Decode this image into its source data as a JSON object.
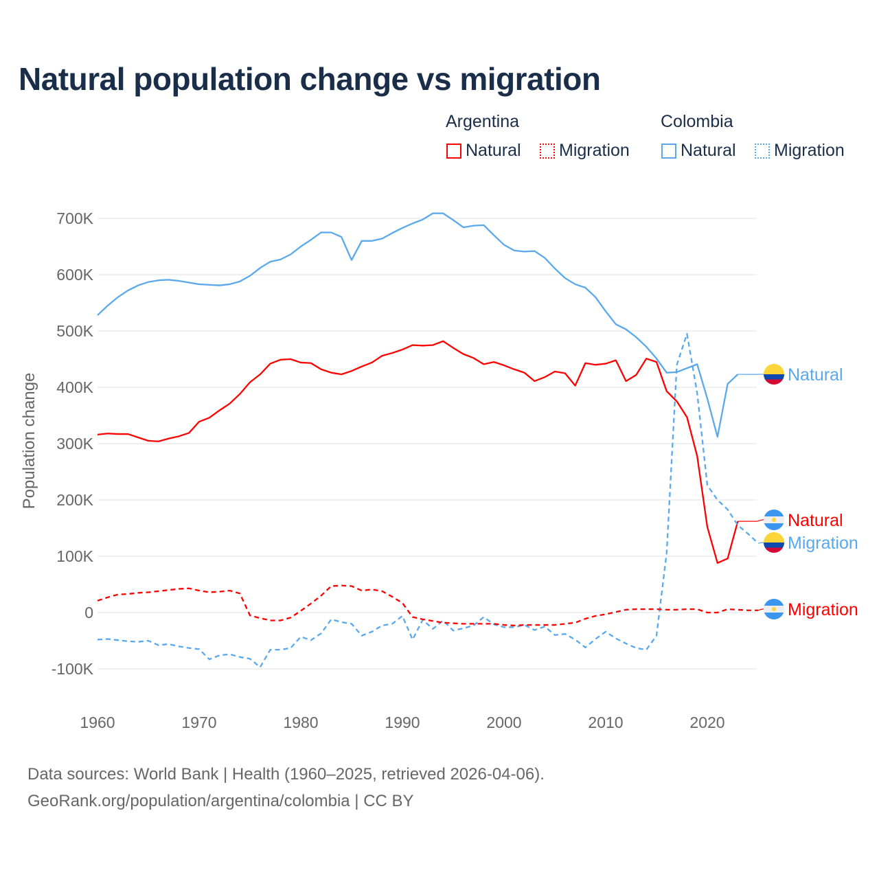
{
  "title": "Natural population change vs migration",
  "legend": {
    "groups": [
      {
        "name": "Argentina",
        "items": [
          {
            "label": "Natural",
            "style": "solid"
          },
          {
            "label": "Migration",
            "style": "dotted"
          }
        ],
        "color": "#ff0000"
      },
      {
        "name": "Colombia",
        "items": [
          {
            "label": "Natural",
            "style": "solid"
          },
          {
            "label": "Migration",
            "style": "dotted"
          }
        ],
        "color": "#5aa8ec"
      }
    ]
  },
  "source": {
    "line1": "Data sources: World Bank | Health (1960–2025, retrieved 2026-04-06).",
    "line2": "GeoRank.org/population/argentina/colombia | CC BY"
  },
  "chart_data": {
    "type": "line",
    "title": "Natural population change vs migration",
    "xlabel": "",
    "ylabel": "Population change",
    "xlim": [
      1960,
      2025
    ],
    "ylim": [
      -100000,
      700000
    ],
    "xticks": [
      1960,
      1970,
      1980,
      1990,
      2000,
      2010,
      2020
    ],
    "yticks": [
      {
        "v": -100000,
        "label": "-100K"
      },
      {
        "v": 0,
        "label": "0"
      },
      {
        "v": 100000,
        "label": "100K"
      },
      {
        "v": 200000,
        "label": "200K"
      },
      {
        "v": 300000,
        "label": "300K"
      },
      {
        "v": 400000,
        "label": "400K"
      },
      {
        "v": 500000,
        "label": "500K"
      },
      {
        "v": 600000,
        "label": "600K"
      },
      {
        "v": 700000,
        "label": "700K"
      }
    ],
    "grid": true,
    "x_start": 1960,
    "series": [
      {
        "name": "Colombia Natural",
        "end_label": "Natural",
        "country": "colombia",
        "color": "#5aa8ec",
        "dashed": false,
        "extend_to": 2025,
        "values_k": [
          528,
          545,
          560,
          572,
          581,
          587,
          590,
          591,
          589,
          586,
          583,
          582,
          581,
          583,
          588,
          598,
          612,
          623,
          627,
          636,
          650,
          662,
          675,
          675,
          667,
          626,
          660,
          660,
          664,
          674,
          683,
          691,
          698,
          709,
          709,
          697,
          684,
          687,
          688,
          670,
          653,
          643,
          641,
          642,
          630,
          611,
          594,
          583,
          577,
          560,
          535,
          512,
          503,
          489,
          472,
          451,
          426,
          427,
          434,
          441,
          380,
          312,
          406,
          423
        ]
      },
      {
        "name": "Argentina Natural",
        "end_label": "Natural",
        "country": "argentina",
        "color": "#ff0000",
        "dashed": false,
        "extend_to": 2025,
        "values_k": [
          316,
          318,
          317,
          317,
          311,
          305,
          304,
          309,
          313,
          319,
          339,
          346,
          359,
          371,
          388,
          409,
          423,
          442,
          449,
          450,
          444,
          443,
          432,
          426,
          423,
          429,
          437,
          444,
          456,
          461,
          467,
          475,
          474,
          475,
          482,
          470,
          459,
          452,
          441,
          445,
          439,
          432,
          426,
          411,
          418,
          428,
          425,
          403,
          443,
          440,
          442,
          448,
          411,
          422,
          451,
          445,
          393,
          375,
          347,
          278,
          152,
          88,
          96,
          162
        ]
      },
      {
        "name": "Colombia Migration",
        "end_label": "Migration",
        "country": "colombia",
        "color": "#5aa8ec",
        "dashed": true,
        "extend_to": 2025,
        "values_k": [
          -48,
          -47,
          -49,
          -51,
          -52,
          -50,
          -58,
          -56,
          -60,
          -63,
          -65,
          -83,
          -76,
          -74,
          -79,
          -82,
          -97,
          -66,
          -66,
          -63,
          -43,
          -49,
          -37,
          -12,
          -17,
          -20,
          -41,
          -34,
          -23,
          -20,
          -6,
          -48,
          -13,
          -29,
          -14,
          -32,
          -28,
          -23,
          -8,
          -21,
          -26,
          -26,
          -22,
          -31,
          -25,
          -40,
          -38,
          -48,
          -62,
          -47,
          -34,
          -46,
          -55,
          -63,
          -66,
          -41,
          106,
          440,
          495,
          390,
          226,
          200,
          183,
          155,
          140,
          123
        ]
      },
      {
        "name": "Argentina Migration",
        "end_label": "Migration",
        "country": "argentina",
        "color": "#ff0000",
        "dashed": true,
        "extend_to": 2025,
        "values_k": [
          21,
          27,
          32,
          33,
          35,
          36,
          38,
          40,
          42,
          43,
          39,
          36,
          37,
          39,
          34,
          -5,
          -10,
          -14,
          -14,
          -9,
          3,
          16,
          30,
          47,
          48,
          47,
          39,
          41,
          38,
          28,
          17,
          -8,
          -12,
          -15,
          -18,
          -19,
          -20,
          -20,
          -20,
          -20,
          -22,
          -23,
          -22,
          -22,
          -22,
          -22,
          -20,
          -18,
          -11,
          -6,
          -3,
          1,
          5,
          6,
          6,
          6,
          5,
          5,
          6,
          6,
          0,
          0,
          6,
          5,
          4,
          4
        ]
      }
    ]
  }
}
